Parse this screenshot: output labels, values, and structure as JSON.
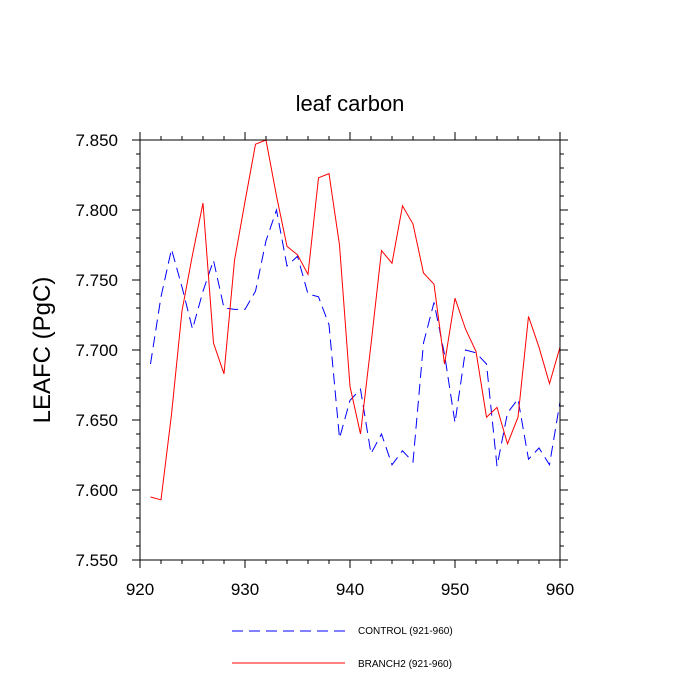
{
  "chart_data": {
    "type": "line",
    "title": "leaf carbon",
    "xlabel": "",
    "ylabel": "LEAFC  (PgC)",
    "xlim": [
      920,
      960
    ],
    "ylim": [
      7.55,
      7.85
    ],
    "x_ticks": [
      920,
      930,
      940,
      950,
      960
    ],
    "y_ticks": [
      7.55,
      7.6,
      7.65,
      7.7,
      7.75,
      7.8,
      7.85
    ],
    "y_tick_labels": [
      "7.550",
      "7.600",
      "7.650",
      "7.700",
      "7.750",
      "7.800",
      "7.850"
    ],
    "x": [
      921,
      922,
      923,
      924,
      925,
      926,
      927,
      928,
      929,
      930,
      931,
      932,
      933,
      934,
      935,
      936,
      937,
      938,
      939,
      940,
      941,
      942,
      943,
      944,
      945,
      946,
      947,
      948,
      949,
      950,
      951,
      952,
      953,
      954,
      955,
      956,
      957,
      958,
      959,
      960
    ],
    "series": [
      {
        "name": "CONTROL (921-960)",
        "color": "#0000ff",
        "dash": "dashed",
        "values": [
          7.69,
          7.738,
          7.772,
          7.745,
          7.715,
          7.742,
          7.764,
          7.73,
          7.729,
          7.729,
          7.742,
          7.778,
          7.8,
          7.76,
          7.767,
          7.74,
          7.738,
          7.718,
          7.637,
          7.664,
          7.672,
          7.626,
          7.64,
          7.618,
          7.628,
          7.62,
          7.705,
          7.734,
          7.697,
          7.648,
          7.7,
          7.698,
          7.69,
          7.617,
          7.655,
          7.665,
          7.622,
          7.63,
          7.618,
          7.663
        ]
      },
      {
        "name": "BRANCH2 (921-960)",
        "color": "#ff0000",
        "dash": "solid",
        "values": [
          7.595,
          7.593,
          7.654,
          7.728,
          7.768,
          7.805,
          7.705,
          7.683,
          7.764,
          7.806,
          7.847,
          7.85,
          7.81,
          7.774,
          7.768,
          7.754,
          7.823,
          7.826,
          7.775,
          7.674,
          7.64,
          7.704,
          7.771,
          7.762,
          7.803,
          7.79,
          7.755,
          7.747,
          7.69,
          7.737,
          7.715,
          7.699,
          7.652,
          7.659,
          7.633,
          7.652,
          7.724,
          7.702,
          7.676,
          7.702
        ]
      }
    ],
    "legend_position": "bottom"
  }
}
